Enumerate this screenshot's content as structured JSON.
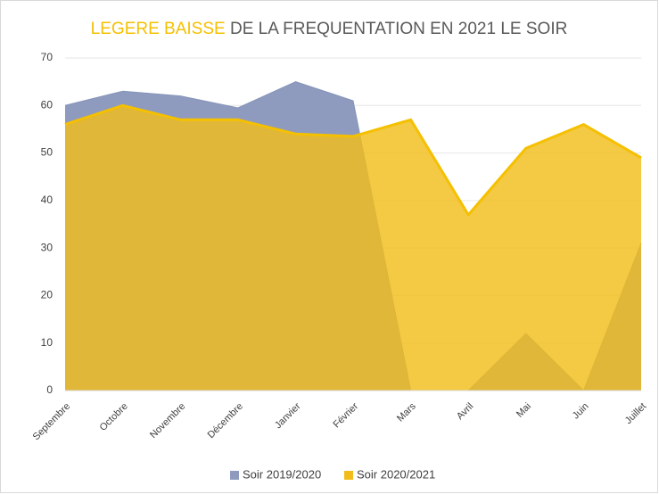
{
  "chart_data": {
    "type": "area",
    "title": {
      "highlight": "LEGERE BAISSE",
      "rest": "DE LA FREQUENTATION EN 2021 LE SOIR"
    },
    "categories": [
      "Septembre",
      "Octobre",
      "Novembre",
      "Décembre",
      "Janvier",
      "Février",
      "Mars",
      "Avril",
      "Mai",
      "Juin",
      "Juillet"
    ],
    "series": [
      {
        "name": "Soir 2019/2020",
        "color": "#8e9bbf",
        "values": [
          60,
          63,
          62,
          59.5,
          65,
          61,
          0,
          0,
          12,
          0,
          31
        ]
      },
      {
        "name": "Soir 2020/2021",
        "color": "#f2bd1a",
        "values": [
          56,
          60,
          57,
          57,
          54,
          53.5,
          57,
          37,
          51,
          56,
          49
        ]
      }
    ],
    "ylim": [
      0,
      70
    ],
    "yticks": [
      0,
      10,
      20,
      30,
      40,
      50,
      60,
      70
    ],
    "grid": true,
    "legend": "bottom"
  }
}
